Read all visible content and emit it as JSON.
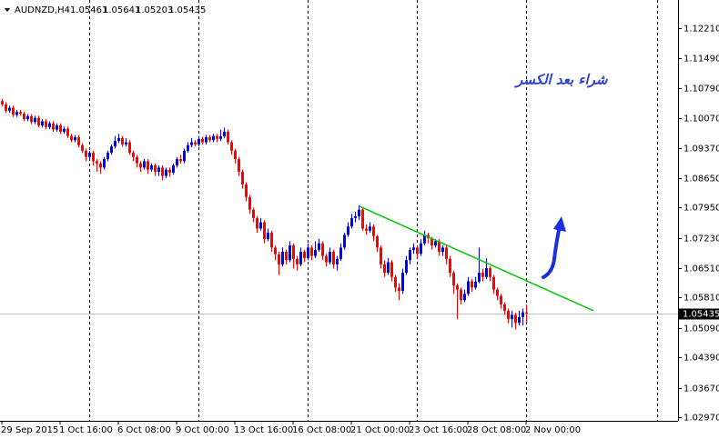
{
  "chart_data": {
    "type": "candlestick",
    "symbol": "AUDNZD,H4",
    "open": [
      1.1048,
      1.104,
      1.1025,
      1.1032,
      1.1015,
      1.1022,
      1.1018,
      1.1005,
      1.1012,
      1.0998,
      1.1008,
      1.099,
      1.1,
      1.0986,
      1.0995,
      1.098,
      1.099,
      1.0975,
      1.0982,
      1.0965,
      1.0955,
      1.0962,
      1.0943,
      1.093,
      1.0915,
      1.0925,
      1.0905,
      1.09,
      1.089,
      1.091,
      1.0925,
      1.094,
      1.0953,
      1.096,
      1.0945,
      1.095,
      1.0925,
      1.0915,
      1.09,
      1.089,
      1.0905,
      1.0885,
      1.0895,
      1.088,
      1.089,
      1.087,
      1.0885,
      1.0878,
      1.0895,
      1.091,
      1.0905,
      1.093,
      1.0943,
      1.095,
      1.0945,
      1.0958,
      1.095,
      1.0962,
      1.0955,
      1.0965,
      1.0958,
      1.0964,
      1.0975,
      1.095,
      1.093,
      1.091,
      1.088,
      1.085,
      1.082,
      1.079,
      1.077,
      1.0745,
      1.076,
      1.072,
      1.0735,
      1.07,
      1.0684,
      1.066,
      1.069,
      1.067,
      1.0705,
      1.0673,
      1.066,
      1.069,
      1.0675,
      1.07,
      1.068,
      1.0694,
      1.071,
      1.068,
      1.0665,
      1.069,
      1.066,
      1.0673,
      1.07,
      1.073,
      1.075,
      1.077,
      1.0774,
      1.079,
      1.0745,
      1.074,
      1.075,
      1.0727,
      1.07,
      1.066,
      1.064,
      1.0665,
      1.063,
      1.0605,
      1.0597,
      1.064,
      1.067,
      1.0694,
      1.07,
      1.0685,
      1.071,
      1.073,
      1.0722,
      1.0705,
      1.0715,
      1.069,
      1.07,
      1.0673,
      1.064,
      1.061,
      1.06,
      1.0575,
      1.059,
      1.062,
      1.0605,
      1.0619,
      1.064,
      1.063,
      1.0651,
      1.063,
      1.06,
      1.0585,
      1.0565,
      1.055,
      1.053,
      1.054,
      1.0521,
      1.0535,
      1.05461
    ],
    "high": [
      1.1053,
      1.1045,
      1.1037,
      1.1037,
      1.1027,
      1.1027,
      1.1023,
      1.1017,
      1.1017,
      1.1013,
      1.1013,
      1.1005,
      1.1005,
      1.1,
      1.1,
      1.0995,
      1.0995,
      1.0987,
      1.0987,
      1.097,
      1.0967,
      1.0967,
      1.0948,
      1.0935,
      1.093,
      1.093,
      1.091,
      1.0905,
      1.0915,
      1.093,
      1.0945,
      1.0965,
      1.097,
      1.0965,
      1.096,
      1.0955,
      1.093,
      1.092,
      1.0905,
      1.091,
      1.091,
      1.09,
      1.09,
      1.0895,
      1.0895,
      1.089,
      1.089,
      1.09,
      1.0915,
      1.092,
      1.0935,
      1.095,
      1.096,
      1.0955,
      1.0963,
      1.0963,
      1.0967,
      1.0967,
      1.097,
      1.097,
      1.098,
      1.0985,
      1.098,
      1.0955,
      1.0935,
      1.0915,
      1.0885,
      1.0855,
      1.0825,
      1.0795,
      1.0775,
      1.077,
      1.0765,
      1.0745,
      1.074,
      1.0705,
      1.069,
      1.07,
      1.0695,
      1.0715,
      1.071,
      1.068,
      1.07,
      1.0695,
      1.071,
      1.0705,
      1.0715,
      1.072,
      1.0715,
      1.0685,
      1.07,
      1.0695,
      1.068,
      1.071,
      1.0735,
      1.076,
      1.078,
      1.0785,
      1.08,
      1.0795,
      1.0755,
      1.076,
      1.0755,
      1.073,
      1.0705,
      1.067,
      1.0675,
      1.067,
      1.0635,
      1.0615,
      1.065,
      1.068,
      1.07,
      1.071,
      1.0705,
      1.072,
      1.074,
      1.0735,
      1.0725,
      1.072,
      1.072,
      1.0705,
      1.0705,
      1.068,
      1.0645,
      1.0615,
      1.0605,
      1.06,
      1.063,
      1.0625,
      1.063,
      1.07,
      1.065,
      1.0675,
      1.0655,
      1.0635,
      1.0605,
      1.059,
      1.057,
      1.0555,
      1.055,
      1.0545,
      1.055,
      1.0555,
      1.05641
    ],
    "low": [
      1.1035,
      1.102,
      1.102,
      1.101,
      1.101,
      1.1013,
      1.1,
      1.1,
      1.0993,
      1.0993,
      1.0985,
      1.0985,
      1.0981,
      1.0981,
      1.0975,
      1.0975,
      1.097,
      1.097,
      1.096,
      1.095,
      1.095,
      1.0938,
      1.0925,
      1.0905,
      1.091,
      1.0895,
      1.088,
      1.0875,
      1.0885,
      1.0905,
      1.092,
      1.0935,
      1.0948,
      1.094,
      1.094,
      1.092,
      1.0905,
      1.089,
      1.088,
      1.0885,
      1.0875,
      1.088,
      1.087,
      1.087,
      1.086,
      1.0865,
      1.0868,
      1.0873,
      1.089,
      1.09,
      1.09,
      1.0925,
      1.0938,
      1.094,
      1.094,
      1.0945,
      1.0945,
      1.095,
      1.095,
      1.095,
      1.0953,
      1.096,
      1.0945,
      1.092,
      1.09,
      1.087,
      1.084,
      1.081,
      1.078,
      1.076,
      1.0735,
      1.074,
      1.071,
      1.0715,
      1.069,
      1.067,
      1.0635,
      1.0655,
      1.066,
      1.0665,
      1.065,
      1.0645,
      1.0655,
      1.0665,
      1.067,
      1.067,
      1.0675,
      1.069,
      1.067,
      1.0655,
      1.066,
      1.065,
      1.0645,
      1.0668,
      1.0695,
      1.0725,
      1.0745,
      1.076,
      1.0765,
      1.074,
      1.073,
      1.0735,
      1.0715,
      1.069,
      1.065,
      1.063,
      1.0635,
      1.062,
      1.0595,
      1.0575,
      1.059,
      1.0635,
      1.066,
      1.0685,
      1.0675,
      1.068,
      1.0705,
      1.071,
      1.0695,
      1.07,
      1.068,
      1.068,
      1.066,
      1.063,
      1.059,
      1.053,
      1.0565,
      1.057,
      1.0585,
      1.0595,
      1.06,
      1.0615,
      1.062,
      1.0625,
      1.062,
      1.059,
      1.0575,
      1.0555,
      1.054,
      1.052,
      1.051,
      1.0505,
      1.0515,
      1.0515,
      1.05203
    ],
    "close": [
      1.104,
      1.1025,
      1.1032,
      1.1015,
      1.1022,
      1.1018,
      1.1005,
      1.1012,
      1.0998,
      1.1008,
      1.099,
      1.1,
      1.0986,
      1.0995,
      1.098,
      1.099,
      1.0975,
      1.0982,
      1.0965,
      1.0955,
      1.0962,
      1.0943,
      1.093,
      1.0915,
      1.0925,
      1.0905,
      1.09,
      1.089,
      1.091,
      1.0925,
      1.094,
      1.0953,
      1.096,
      1.0945,
      1.095,
      1.0925,
      1.0915,
      1.09,
      1.089,
      1.0905,
      1.0885,
      1.0895,
      1.088,
      1.089,
      1.087,
      1.0885,
      1.0878,
      1.0895,
      1.091,
      1.0905,
      1.093,
      1.0943,
      1.095,
      1.0945,
      1.0958,
      1.095,
      1.0962,
      1.0955,
      1.0965,
      1.0958,
      1.0964,
      1.0975,
      1.095,
      1.093,
      1.091,
      1.088,
      1.085,
      1.082,
      1.079,
      1.077,
      1.0745,
      1.076,
      1.072,
      1.0735,
      1.07,
      1.0684,
      1.066,
      1.069,
      1.067,
      1.0705,
      1.0673,
      1.066,
      1.069,
      1.0675,
      1.07,
      1.068,
      1.0694,
      1.071,
      1.068,
      1.0665,
      1.069,
      1.066,
      1.0673,
      1.07,
      1.073,
      1.075,
      1.077,
      1.0774,
      1.079,
      1.0745,
      1.074,
      1.075,
      1.0727,
      1.07,
      1.066,
      1.064,
      1.0665,
      1.063,
      1.0605,
      1.0597,
      1.064,
      1.067,
      1.0694,
      1.07,
      1.0685,
      1.071,
      1.073,
      1.0722,
      1.0705,
      1.0715,
      1.069,
      1.07,
      1.0673,
      1.064,
      1.061,
      1.06,
      1.0575,
      1.059,
      1.062,
      1.0605,
      1.0619,
      1.064,
      1.063,
      1.0651,
      1.063,
      1.06,
      1.0585,
      1.0565,
      1.055,
      1.053,
      1.054,
      1.0521,
      1.0535,
      1.05461,
      1.05435
    ],
    "up_color": "#0000ff",
    "down_color": "#ff0000",
    "xlim": [
      -0.5,
      185.75
    ],
    "xticks": [
      {
        "value": 0,
        "label": "29 Sep 2015"
      },
      {
        "value": 16,
        "label": "1 Oct 16:00"
      },
      {
        "value": 32,
        "label": "6 Oct 08:00"
      },
      {
        "value": 48,
        "label": "9 Oct 00:00"
      },
      {
        "value": 64,
        "label": "13 Oct 16:00"
      },
      {
        "value": 80,
        "label": "16 Oct 08:00"
      },
      {
        "value": 96,
        "label": "21 Oct 00:00"
      },
      {
        "value": 112,
        "label": "23 Oct 16:00"
      },
      {
        "value": 128,
        "label": "28 Oct 08:00"
      },
      {
        "value": 144,
        "label": "2 Nov 00:00"
      }
    ],
    "xgrid": [
      24,
      54,
      84,
      114,
      144,
      180
    ],
    "ylim": [
      1.02884,
      1.12879
    ],
    "yticks": [
      {
        "value": 1.1221,
        "label": "1.12210"
      },
      {
        "value": 1.1149,
        "label": "1.11490"
      },
      {
        "value": 1.1079,
        "label": "1.10790"
      },
      {
        "value": 1.1007,
        "label": "1.10070"
      },
      {
        "value": 1.0937,
        "label": "1.09370"
      },
      {
        "value": 1.0865,
        "label": "1.08650"
      },
      {
        "value": 1.0795,
        "label": "1.07950"
      },
      {
        "value": 1.0723,
        "label": "1.07230"
      },
      {
        "value": 1.0651,
        "label": "1.06510"
      },
      {
        "value": 1.0581,
        "label": "1.05810"
      },
      {
        "value": 1.0509,
        "label": "1.05090"
      },
      {
        "value": 1.0439,
        "label": "1.04390"
      },
      {
        "value": 1.0367,
        "label": "1.03670"
      },
      {
        "value": 1.0297,
        "label": "1.02970"
      }
    ],
    "trendline": {
      "x": [
        98.25,
        162.5
      ],
      "y": [
        1.0798,
        1.055
      ],
      "color": "#00c800"
    },
    "annotation": "شراء بعد الكسر"
  }
}
